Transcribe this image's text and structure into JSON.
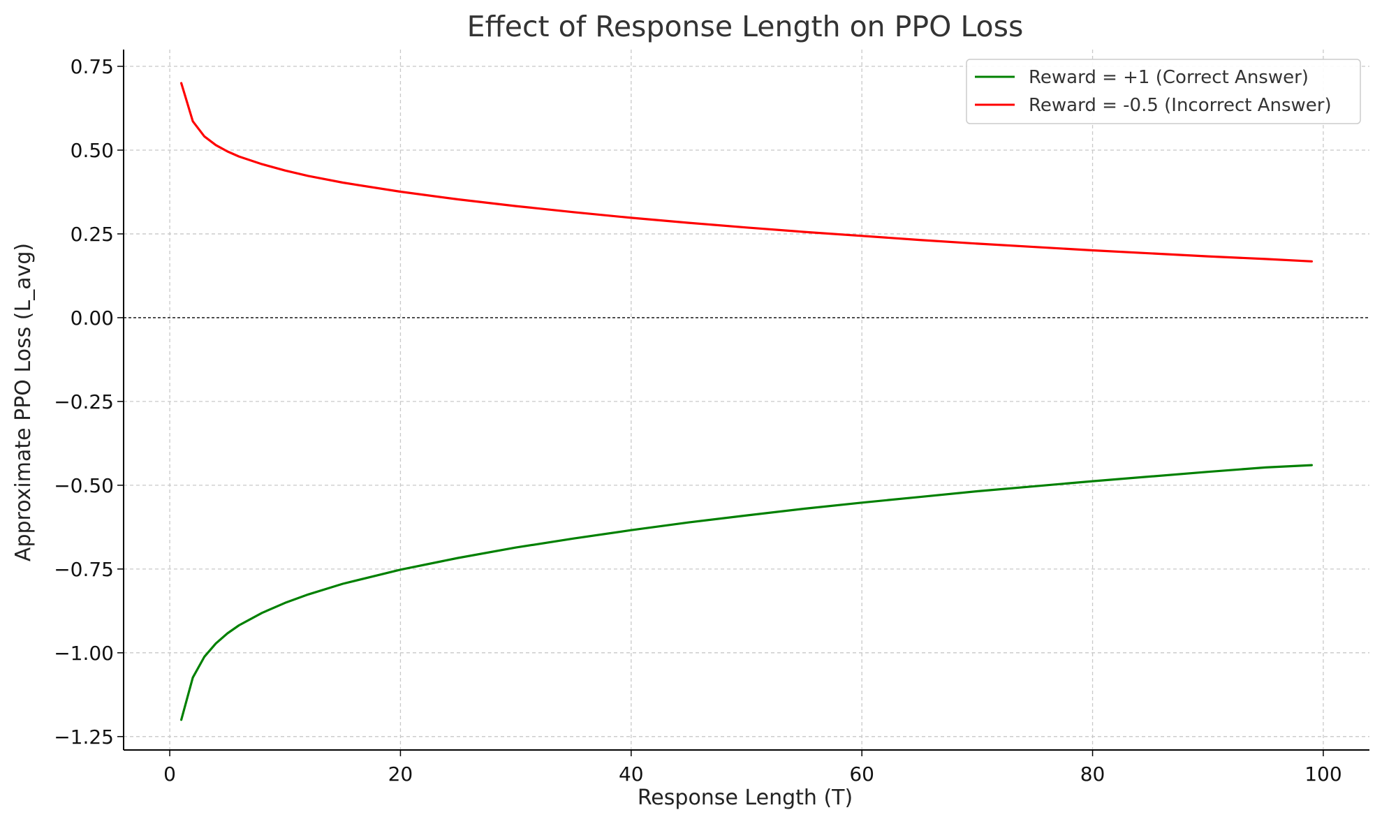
{
  "chart_data": {
    "type": "line",
    "title": "Effect of Response Length on PPO Loss",
    "xlabel": "Response Length (T)",
    "ylabel": "Approximate PPO Loss (L_avg)",
    "xlim": [
      -4,
      104
    ],
    "ylim": [
      -1.29,
      0.8
    ],
    "x_ticks": [
      0,
      20,
      40,
      60,
      80,
      100
    ],
    "x_tick_labels": [
      "0",
      "20",
      "40",
      "60",
      "80",
      "100"
    ],
    "y_ticks": [
      0.75,
      0.5,
      0.25,
      0.0,
      -0.25,
      -0.5,
      -0.75,
      -1.0,
      -1.25
    ],
    "y_tick_labels": [
      "0.75",
      "0.50",
      "0.25",
      "0.00",
      "−0.25",
      "−0.50",
      "−0.75",
      "−1.00",
      "−1.25"
    ],
    "grid": true,
    "reference_line_y": 0,
    "legend_position": "top-right",
    "x": [
      1,
      2,
      3,
      4,
      5,
      6,
      8,
      10,
      12,
      15,
      20,
      25,
      30,
      35,
      40,
      45,
      50,
      55,
      60,
      65,
      70,
      75,
      80,
      85,
      90,
      95,
      99
    ],
    "series": [
      {
        "name": "Reward = +1 (Correct Answer)",
        "color": "#008000",
        "values": [
          -1.2,
          -1.074,
          -1.012,
          -0.972,
          -0.942,
          -0.918,
          -0.881,
          -0.851,
          -0.826,
          -0.794,
          -0.752,
          -0.717,
          -0.686,
          -0.659,
          -0.634,
          -0.611,
          -0.59,
          -0.57,
          -0.552,
          -0.535,
          -0.518,
          -0.503,
          -0.488,
          -0.474,
          -0.46,
          -0.447,
          -0.44
        ]
      },
      {
        "name": "Reward = -0.5 (Incorrect Answer)",
        "color": "#ff0000",
        "values": [
          0.7,
          0.586,
          0.541,
          0.515,
          0.496,
          0.481,
          0.458,
          0.439,
          0.423,
          0.403,
          0.376,
          0.353,
          0.333,
          0.315,
          0.298,
          0.283,
          0.269,
          0.256,
          0.244,
          0.232,
          0.221,
          0.211,
          0.201,
          0.192,
          0.183,
          0.175,
          0.168
        ]
      }
    ]
  }
}
